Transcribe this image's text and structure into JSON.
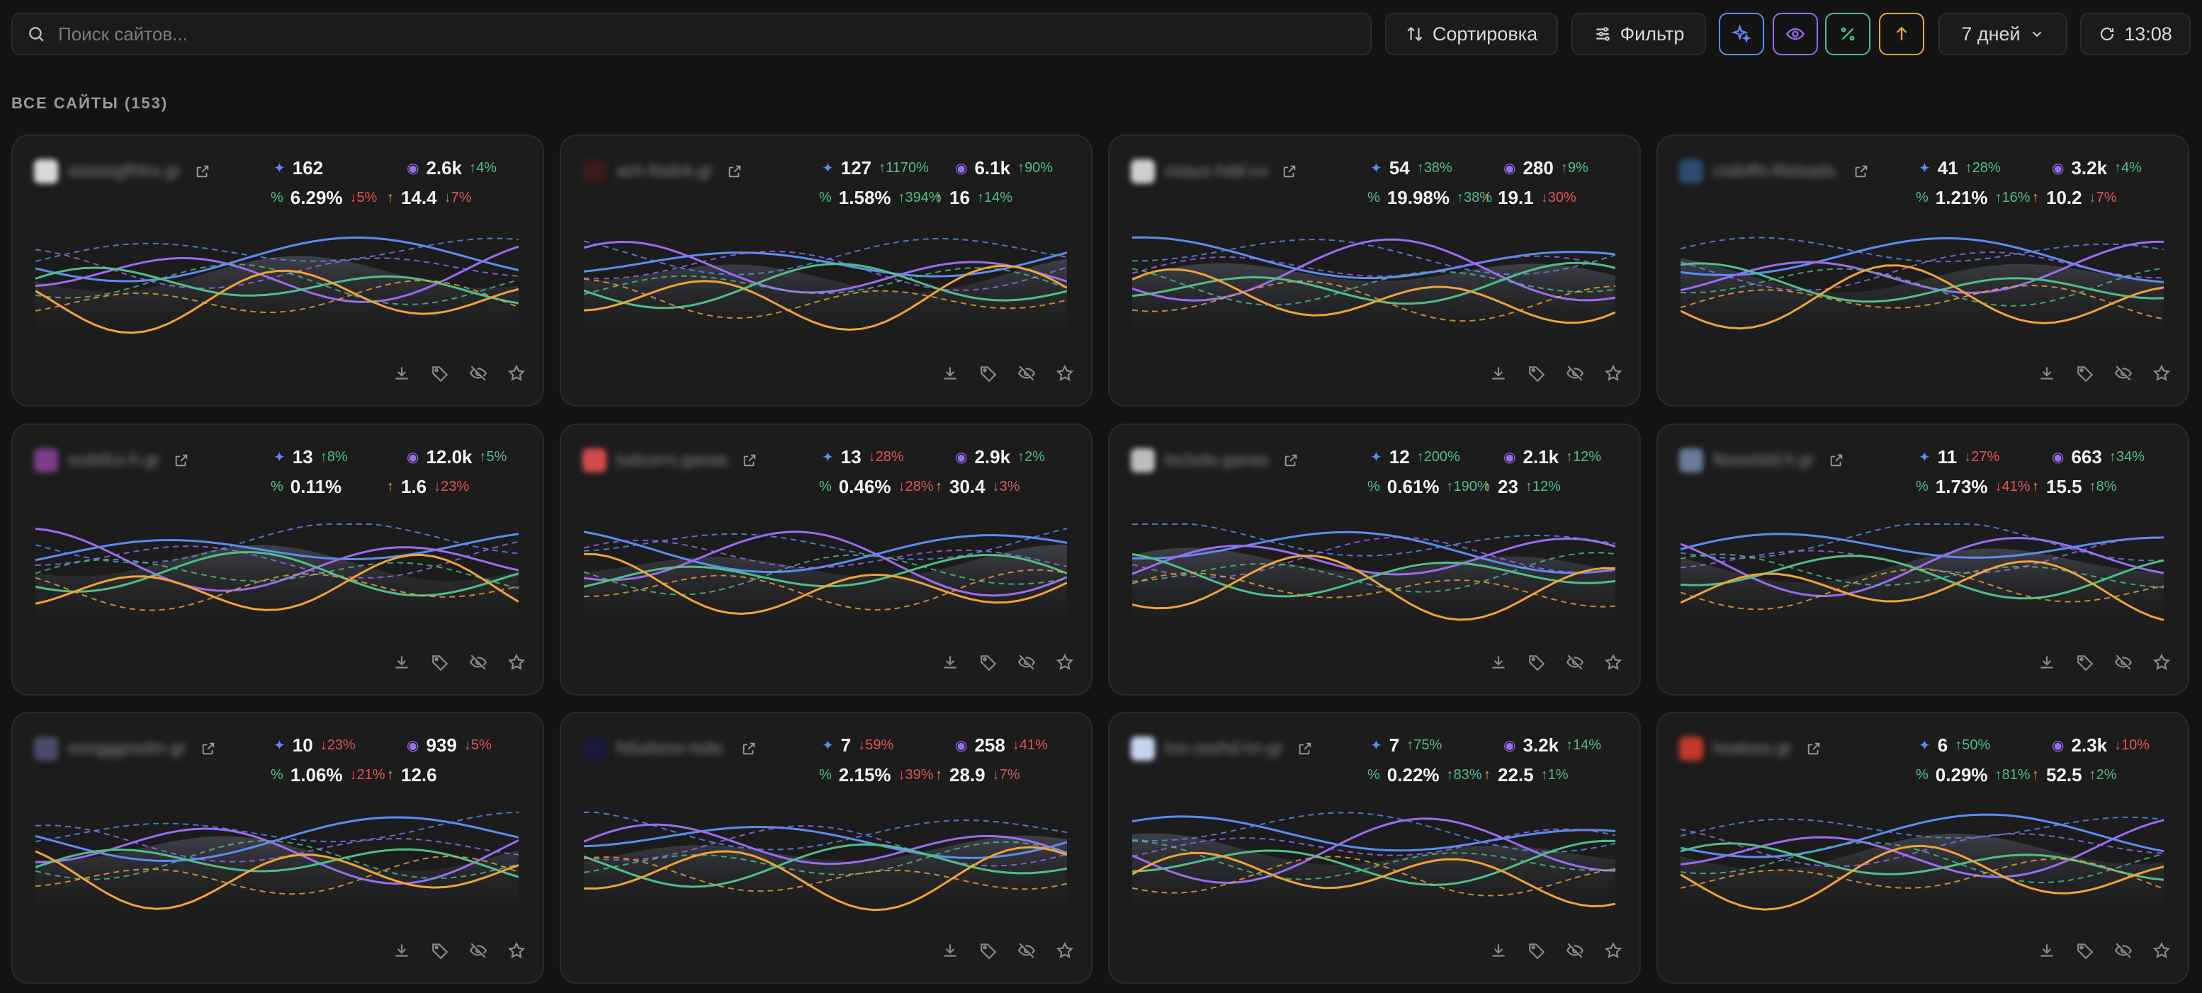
{
  "search": {
    "placeholder": "Поиск сайтов..."
  },
  "toolbar": {
    "sort_label": "Сортировка",
    "filter_label": "Фильтр",
    "toggles": [
      {
        "name": "toggle-sparkle",
        "color": "#5b8def"
      },
      {
        "name": "toggle-eye",
        "color": "#9b6cf0"
      },
      {
        "name": "toggle-percent",
        "color": "#4fbf86"
      },
      {
        "name": "toggle-arrow-up",
        "color": "#f0a438"
      }
    ],
    "period": "7 дней",
    "refresh_time": "13:08"
  },
  "section": {
    "title": "ВСЕ САЙТЫ (153)"
  },
  "colors": {
    "blue": "#5b8def",
    "purple": "#9b6cf0",
    "green": "#4fbf86",
    "orange": "#f0a438",
    "up": "#4fbf86",
    "down": "#e05555"
  },
  "sites": [
    {
      "name": "ooooogfhfcs.gr",
      "favicon": "#d9d9d9",
      "m1": {
        "v": "162",
        "d": ""
      },
      "m2": {
        "v": "2.6k",
        "d": "↑4%",
        "up": true
      },
      "m3": {
        "v": "6.29%",
        "d": "↓5%",
        "up": false
      },
      "m4": {
        "v": "14.4",
        "d": "↓7%",
        "up": false
      }
    },
    {
      "name": "ach-ltsdck.gr",
      "favicon": "#3a1a1a",
      "m1": {
        "v": "127",
        "d": "↑1170%",
        "up": true
      },
      "m2": {
        "v": "6.1k",
        "d": "↑90%",
        "up": true
      },
      "m3": {
        "v": "1.58%",
        "d": "↑394%",
        "up": true
      },
      "m4": {
        "v": "16",
        "d": "↑14%",
        "up": true
      }
    },
    {
      "name": "ooaus-hdd.co",
      "favicon": "#cfcfcf",
      "m1": {
        "v": "54",
        "d": "↑38%",
        "up": true
      },
      "m2": {
        "v": "280",
        "d": "↑9%",
        "up": true
      },
      "m3": {
        "v": "19.98%",
        "d": "↑38%",
        "up": true
      },
      "m4": {
        "v": "19.1",
        "d": "↓30%",
        "up": false
      }
    },
    {
      "name": "csdoffo-filstsads.",
      "favicon": "#2e4a6e",
      "m1": {
        "v": "41",
        "d": "↑28%",
        "up": true
      },
      "m2": {
        "v": "3.2k",
        "d": "↑4%",
        "up": true
      },
      "m3": {
        "v": "1.21%",
        "d": "↑16%",
        "up": true
      },
      "m4": {
        "v": "10.2",
        "d": "↓7%",
        "up": false
      }
    },
    {
      "name": "scdsfcs-h.gr",
      "favicon": "#7a3f8a",
      "m1": {
        "v": "13",
        "d": "↑8%",
        "up": true
      },
      "m2": {
        "v": "12.0k",
        "d": "↑5%",
        "up": true
      },
      "m3": {
        "v": "0.11%",
        "d": ""
      },
      "m4": {
        "v": "1.6",
        "d": "↓23%",
        "up": false
      }
    },
    {
      "name": "ludcorrs.ganas",
      "favicon": "#d24a4a",
      "m1": {
        "v": "13",
        "d": "↓28%",
        "up": false
      },
      "m2": {
        "v": "2.9k",
        "d": "↑2%",
        "up": true
      },
      "m3": {
        "v": "0.46%",
        "d": "↓28%",
        "up": false
      },
      "m4": {
        "v": "30.4",
        "d": "↓3%",
        "up": false
      }
    },
    {
      "name": "lnclsdo.ganas",
      "favicon": "#bdbdbd",
      "m1": {
        "v": "12",
        "d": "↑200%",
        "up": true
      },
      "m2": {
        "v": "2.1k",
        "d": "↑12%",
        "up": true
      },
      "m3": {
        "v": "0.61%",
        "d": "↑190%",
        "up": true
      },
      "m4": {
        "v": "23",
        "d": "↑12%",
        "up": true
      }
    },
    {
      "name": "lboostsld.h.gr",
      "favicon": "#6a7a9a",
      "m1": {
        "v": "11",
        "d": "↓27%",
        "up": false
      },
      "m2": {
        "v": "663",
        "d": "↑34%",
        "up": true
      },
      "m3": {
        "v": "1.73%",
        "d": "↓41%",
        "up": false
      },
      "m4": {
        "v": "15.5",
        "d": "↑8%",
        "up": true
      }
    },
    {
      "name": "onngggrsolm.gr",
      "favicon": "#4a4a6a",
      "m1": {
        "v": "10",
        "d": "↓23%",
        "up": false
      },
      "m2": {
        "v": "939",
        "d": "↓5%",
        "up": false
      },
      "m3": {
        "v": "1.06%",
        "d": "↓21%",
        "up": false
      },
      "m4": {
        "v": "12.6",
        "d": ""
      }
    },
    {
      "name": "fsfudsmo-tsds.",
      "favicon": "#1a1a3a",
      "m1": {
        "v": "7",
        "d": "↓59%",
        "up": false
      },
      "m2": {
        "v": "258",
        "d": "↓41%",
        "up": false
      },
      "m3": {
        "v": "2.15%",
        "d": "↓39%",
        "up": false
      },
      "m4": {
        "v": "28.9",
        "d": "↓7%",
        "up": false
      }
    },
    {
      "name": "hrs-osshd.hn.gr",
      "favicon": "#c8d4ee",
      "m1": {
        "v": "7",
        "d": "↑75%",
        "up": true
      },
      "m2": {
        "v": "3.2k",
        "d": "↑14%",
        "up": true
      },
      "m3": {
        "v": "0.22%",
        "d": "↑83%",
        "up": true
      },
      "m4": {
        "v": "22.5",
        "d": "↑1%",
        "up": true
      }
    },
    {
      "name": "hoaloss.gr",
      "favicon": "#c0392b",
      "m1": {
        "v": "6",
        "d": "↑50%",
        "up": true
      },
      "m2": {
        "v": "2.3k",
        "d": "↓10%",
        "up": false
      },
      "m3": {
        "v": "0.29%",
        "d": "↑81%",
        "up": true
      },
      "m4": {
        "v": "52.5",
        "d": "↑2%",
        "up": true
      }
    }
  ]
}
